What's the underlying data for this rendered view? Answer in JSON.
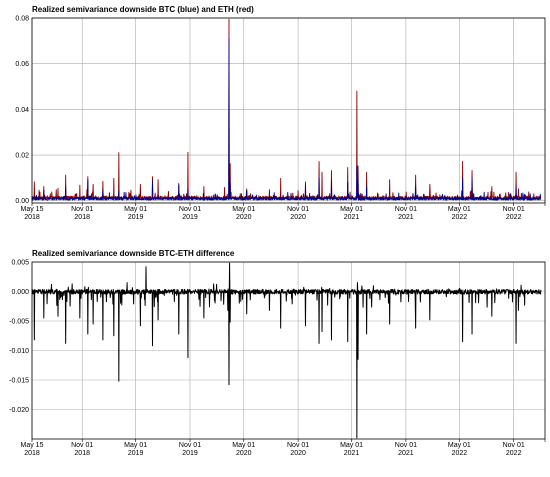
{
  "chart_data": [
    {
      "type": "line",
      "title": "Realized semivariance downside BTC (blue) and ETH (red)",
      "xlabel": "",
      "ylabel": "",
      "x_range": [
        "2018-05-15",
        "2023-02-15"
      ],
      "ylim": [
        -0.001,
        0.08
      ],
      "y_ticks": [
        0.0,
        0.02,
        0.04,
        0.06,
        0.08
      ],
      "y_tick_labels": [
        "0.00",
        "0.02",
        "0.04",
        "0.06",
        "0.08"
      ],
      "x_tick_labels": [
        [
          "May 15",
          "2018"
        ],
        [
          "Nov 01",
          "2018"
        ],
        [
          "May 01",
          "2019"
        ],
        [
          "Nov 01",
          "2019"
        ],
        [
          "May 01",
          "2020"
        ],
        [
          "Nov 01",
          "2020"
        ],
        [
          "May 01",
          "2021"
        ],
        [
          "Nov 01",
          "2021"
        ],
        [
          "May 01",
          "2022"
        ],
        [
          "Nov 01",
          "2022"
        ]
      ],
      "grid": true,
      "colors": {
        "BTC": "#00008b",
        "ETH": "#8b0000"
      },
      "series": [
        {
          "label": "ETH",
          "color": "#8b0000",
          "baseline": 0.0012,
          "spikes": [
            [
              "2018-05-23",
              0.0082
            ],
            [
              "2018-06-24",
              0.0062
            ],
            [
              "2018-08-11",
              0.0055
            ],
            [
              "2018-09-06",
              0.0112
            ],
            [
              "2018-10-24",
              0.0068
            ],
            [
              "2018-11-20",
              0.0105
            ],
            [
              "2018-12-08",
              0.0072
            ],
            [
              "2019-01-10",
              0.0085
            ],
            [
              "2019-02-16",
              0.0098
            ],
            [
              "2019-03-05",
              0.021
            ],
            [
              "2019-05-17",
              0.0072
            ],
            [
              "2019-06-27",
              0.0105
            ],
            [
              "2019-07-16",
              0.0092
            ],
            [
              "2019-09-24",
              0.0069
            ],
            [
              "2019-10-25",
              0.0212
            ],
            [
              "2019-12-18",
              0.0062
            ],
            [
              "2020-02-26",
              0.0058
            ],
            [
              "2020-03-12",
              0.0795
            ],
            [
              "2020-03-16",
              0.0162
            ],
            [
              "2020-05-11",
              0.0052
            ],
            [
              "2020-07-27",
              0.0048
            ],
            [
              "2020-09-03",
              0.0098
            ],
            [
              "2020-11-26",
              0.0082
            ],
            [
              "2021-01-11",
              0.0172
            ],
            [
              "2021-01-21",
              0.0125
            ],
            [
              "2021-02-22",
              0.0132
            ],
            [
              "2021-04-18",
              0.0145
            ],
            [
              "2021-05-19",
              0.048
            ],
            [
              "2021-05-23",
              0.0152
            ],
            [
              "2021-06-21",
              0.0125
            ],
            [
              "2021-09-07",
              0.0092
            ],
            [
              "2021-12-04",
              0.0112
            ],
            [
              "2022-01-21",
              0.0072
            ],
            [
              "2022-05-12",
              0.0172
            ],
            [
              "2022-06-13",
              0.0132
            ],
            [
              "2022-08-19",
              0.0062
            ],
            [
              "2022-11-09",
              0.0125
            ],
            [
              "2022-11-17",
              0.0052
            ]
          ]
        },
        {
          "label": "BTC",
          "color": "#00008b",
          "baseline": 0.0009,
          "spikes": [
            [
              "2018-06-24",
              0.0045
            ],
            [
              "2018-09-06",
              0.0062
            ],
            [
              "2018-11-20",
              0.0092
            ],
            [
              "2019-01-10",
              0.0048
            ],
            [
              "2019-03-05",
              0.0042
            ],
            [
              "2019-06-27",
              0.0088
            ],
            [
              "2019-09-24",
              0.0075
            ],
            [
              "2019-10-25",
              0.0052
            ],
            [
              "2020-03-12",
              0.0708
            ],
            [
              "2020-03-16",
              0.0078
            ],
            [
              "2020-05-11",
              0.0045
            ],
            [
              "2020-11-26",
              0.0068
            ],
            [
              "2021-01-11",
              0.0098
            ],
            [
              "2021-02-22",
              0.0088
            ],
            [
              "2021-04-18",
              0.0082
            ],
            [
              "2021-05-19",
              0.0152
            ],
            [
              "2021-05-23",
              0.0095
            ],
            [
              "2021-06-21",
              0.0062
            ],
            [
              "2021-12-04",
              0.0062
            ],
            [
              "2022-05-12",
              0.0098
            ],
            [
              "2022-06-13",
              0.0102
            ],
            [
              "2022-11-09",
              0.0062
            ]
          ]
        }
      ]
    },
    {
      "type": "line",
      "title": "Realized semivariance downside BTC-ETH difference",
      "xlabel": "",
      "ylabel": "",
      "x_range": [
        "2018-05-15",
        "2023-02-15"
      ],
      "ylim": [
        -0.025,
        0.005
      ],
      "y_ticks": [
        0.005,
        0.0,
        -0.005,
        -0.01,
        -0.015,
        -0.02
      ],
      "y_tick_labels": [
        "0.005",
        "0.000",
        "-0.005",
        "-0.010",
        "-0.015",
        "-0.020"
      ],
      "x_tick_labels": [
        [
          "May 15",
          "2018"
        ],
        [
          "Nov 01",
          "2018"
        ],
        [
          "May 01",
          "2019"
        ],
        [
          "Nov 01",
          "2019"
        ],
        [
          "May 01",
          "2020"
        ],
        [
          "Nov 01",
          "2020"
        ],
        [
          "May 01",
          "2021"
        ],
        [
          "Nov 01",
          "2021"
        ],
        [
          "May 01",
          "2022"
        ],
        [
          "Nov 01",
          "2022"
        ]
      ],
      "grid": true,
      "colors": {
        "difference": "#000000"
      },
      "series": [
        {
          "label": "BTC-ETH difference",
          "color": "#000000",
          "spikes": [
            [
              "2018-05-23",
              -0.0082
            ],
            [
              "2018-06-24",
              -0.0045
            ],
            [
              "2018-07-20",
              0.0012
            ],
            [
              "2018-08-11",
              -0.0042
            ],
            [
              "2018-09-06",
              -0.0088
            ],
            [
              "2018-09-28",
              0.0013
            ],
            [
              "2018-10-24",
              -0.0045
            ],
            [
              "2018-11-20",
              -0.0072
            ],
            [
              "2018-12-08",
              -0.0055
            ],
            [
              "2019-01-10",
              -0.0082
            ],
            [
              "2019-02-16",
              -0.0075
            ],
            [
              "2019-03-05",
              -0.0152
            ],
            [
              "2019-04-02",
              0.0015
            ],
            [
              "2019-05-17",
              -0.0058
            ],
            [
              "2019-06-05",
              0.0042
            ],
            [
              "2019-06-27",
              -0.0092
            ],
            [
              "2019-07-16",
              -0.0048
            ],
            [
              "2019-09-24",
              -0.0072
            ],
            [
              "2019-10-25",
              -0.0112
            ],
            [
              "2019-12-18",
              -0.0045
            ],
            [
              "2020-01-30",
              0.0012
            ],
            [
              "2020-03-08",
              -0.0032
            ],
            [
              "2020-03-12",
              -0.0158
            ],
            [
              "2020-03-14",
              0.0048
            ],
            [
              "2020-03-16",
              -0.0052
            ],
            [
              "2020-05-11",
              -0.0038
            ],
            [
              "2020-07-27",
              -0.0032
            ],
            [
              "2020-09-03",
              -0.0062
            ],
            [
              "2020-11-26",
              -0.0058
            ],
            [
              "2021-01-11",
              -0.0088
            ],
            [
              "2021-01-21",
              -0.0068
            ],
            [
              "2021-02-22",
              -0.0082
            ],
            [
              "2021-04-18",
              -0.0085
            ],
            [
              "2021-05-19",
              -0.0248
            ],
            [
              "2021-05-21",
              0.0015
            ],
            [
              "2021-05-23",
              -0.0115
            ],
            [
              "2021-06-21",
              -0.0072
            ],
            [
              "2021-09-07",
              -0.0055
            ],
            [
              "2021-12-04",
              -0.0062
            ],
            [
              "2022-01-21",
              -0.0048
            ],
            [
              "2022-05-12",
              -0.0085
            ],
            [
              "2022-06-13",
              -0.0072
            ],
            [
              "2022-08-19",
              -0.0042
            ],
            [
              "2022-11-09",
              -0.0088
            ],
            [
              "2022-11-17",
              -0.0032
            ]
          ]
        }
      ]
    }
  ]
}
